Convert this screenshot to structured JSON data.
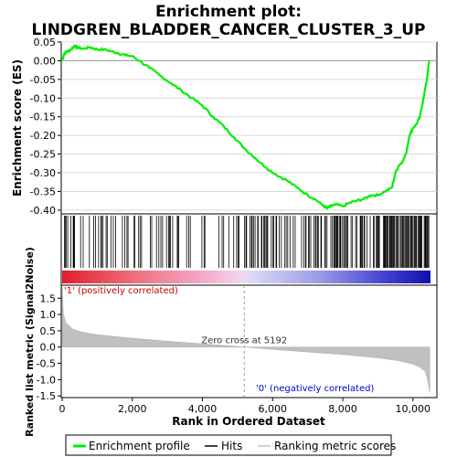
{
  "chart_data": {
    "type": "line",
    "title_line1": "Enrichment plot:",
    "title_line2": "LINDGREN_BLADDER_CANCER_CLUSTER_3_UP",
    "xlabel": "Rank in Ordered Dataset",
    "ylabel_top": "Enrichment score (ES)",
    "ylabel_bottom": "Ranked list metric (Signal2Noise)",
    "xlim": [
      0,
      10500
    ],
    "es_ylim": [
      -0.41,
      0.05
    ],
    "metric_ylim": [
      -1.55,
      1.9
    ],
    "x_ticks": [
      0,
      2000,
      4000,
      6000,
      8000,
      10000
    ],
    "x_tick_labels": [
      "0",
      "2,000",
      "4,000",
      "6,000",
      "8,000",
      "10,000"
    ],
    "es_ticks": [
      0.05,
      0.0,
      -0.05,
      -0.1,
      -0.15,
      -0.2,
      -0.25,
      -0.3,
      -0.35,
      -0.4
    ],
    "es_tick_labels": [
      "0.05",
      "0.00",
      "-0.05",
      "-0.10",
      "-0.15",
      "-0.20",
      "-0.25",
      "-0.30",
      "-0.35",
      "-0.40"
    ],
    "metric_ticks": [
      1.5,
      1.0,
      0.5,
      0.0,
      -0.5,
      -1.0,
      -1.5
    ],
    "metric_tick_labels": [
      "1.5",
      "1.0",
      "0.5",
      "0.0",
      "-0.5",
      "-1.0",
      "-1.5"
    ],
    "enrichment_profile": {
      "name": "Enrichment profile",
      "color": "#00ee00",
      "x": [
        0,
        60,
        150,
        250,
        350,
        450,
        600,
        800,
        1000,
        1200,
        1400,
        1600,
        1800,
        2000,
        2200,
        2500,
        2800,
        3100,
        3400,
        3700,
        4000,
        4300,
        4600,
        4900,
        5200,
        5500,
        5800,
        6100,
        6400,
        6700,
        7000,
        7200,
        7400,
        7550,
        7650,
        7800,
        8000,
        8200,
        8400,
        8600,
        8800,
        9000,
        9200,
        9400,
        9500,
        9600,
        9700,
        9800,
        9900,
        10000,
        10100,
        10200,
        10300,
        10400,
        10460
      ],
      "y": [
        0.0,
        0.02,
        0.025,
        0.03,
        0.04,
        0.035,
        0.032,
        0.036,
        0.03,
        0.03,
        0.025,
        0.02,
        0.015,
        0.012,
        0.0,
        -0.02,
        -0.04,
        -0.06,
        -0.08,
        -0.1,
        -0.12,
        -0.15,
        -0.175,
        -0.205,
        -0.235,
        -0.26,
        -0.285,
        -0.305,
        -0.32,
        -0.34,
        -0.36,
        -0.37,
        -0.385,
        -0.395,
        -0.39,
        -0.385,
        -0.39,
        -0.38,
        -0.375,
        -0.37,
        -0.36,
        -0.36,
        -0.35,
        -0.34,
        -0.3,
        -0.28,
        -0.27,
        -0.25,
        -0.2,
        -0.18,
        -0.17,
        -0.15,
        -0.1,
        -0.05,
        0.0
      ]
    },
    "metric_curve_samples": {
      "name": "Ranking metric scores",
      "color": "#c0c0c0",
      "x": [
        0,
        30,
        100,
        300,
        600,
        1000,
        2000,
        3000,
        4000,
        5192,
        6000,
        7000,
        8000,
        9000,
        9600,
        10000,
        10200,
        10350,
        10420,
        10480
      ],
      "y": [
        1.85,
        1.05,
        0.75,
        0.55,
        0.45,
        0.38,
        0.27,
        0.18,
        0.1,
        0.0,
        -0.07,
        -0.15,
        -0.23,
        -0.33,
        -0.42,
        -0.52,
        -0.62,
        -0.75,
        -1.0,
        -1.4
      ]
    },
    "hits_legend": "Hits",
    "zero_cross_label": "Zero cross at 5192",
    "zero_cross_x": 5192,
    "pos_label": "'1' (positively correlated)",
    "neg_label": "'0' (negatively correlated)",
    "pos_label_color": "#cc0000",
    "neg_label_color": "#0000cc",
    "legend": {
      "entries": [
        "Enrichment profile",
        "Hits",
        "Ranking metric scores"
      ],
      "placement": "bottom"
    }
  }
}
